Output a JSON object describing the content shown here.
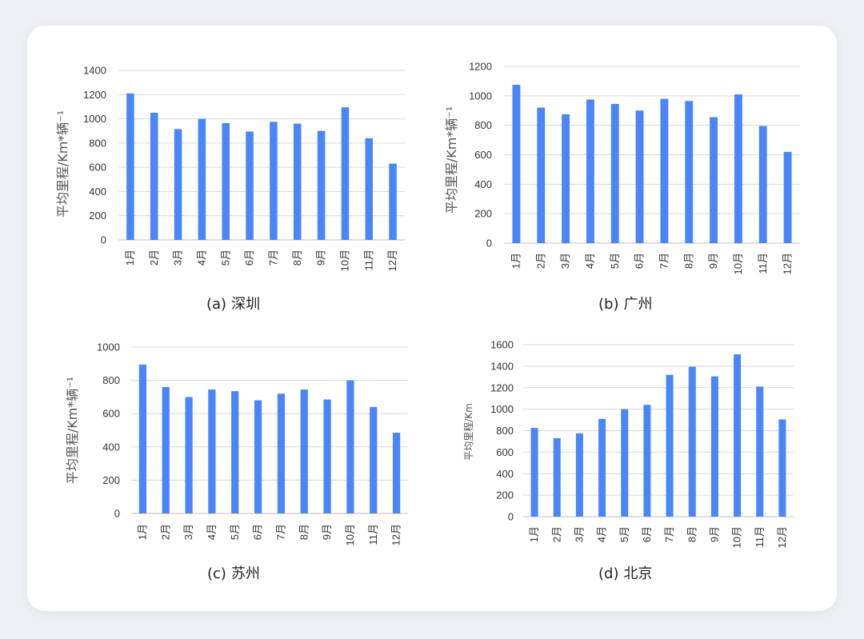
{
  "colors": {
    "bar": "#4a86f7",
    "grid": "#d9d9d9",
    "axis": "#bfbfbf"
  },
  "captions": [
    {
      "label": "(a)",
      "city": "深圳"
    },
    {
      "label": "(b)",
      "city": "广州"
    },
    {
      "label": "(c)",
      "city": "苏州"
    },
    {
      "label": "(d)",
      "city": "北京"
    }
  ],
  "chart_data": [
    {
      "type": "bar",
      "categories": [
        "1月",
        "2月",
        "3月",
        "4月",
        "5月",
        "6月",
        "7月",
        "8月",
        "9月",
        "10月",
        "11月",
        "12月"
      ],
      "values": [
        1210,
        1050,
        915,
        1000,
        965,
        895,
        975,
        960,
        900,
        1095,
        840,
        630
      ],
      "ylabel": "平均里程/Km*辆⁻¹",
      "ylim": [
        0,
        1400
      ],
      "yticks": [
        0,
        200,
        400,
        600,
        800,
        1000,
        1200,
        1400
      ],
      "grid": true
    },
    {
      "type": "bar",
      "categories": [
        "1月",
        "2月",
        "3月",
        "4月",
        "5月",
        "6月",
        "7月",
        "8月",
        "9月",
        "10月",
        "11月",
        "12月"
      ],
      "values": [
        1075,
        920,
        875,
        975,
        945,
        900,
        980,
        965,
        855,
        1010,
        795,
        620
      ],
      "ylabel": "平均里程/Km*辆⁻¹",
      "ylim": [
        0,
        1200
      ],
      "yticks": [
        0,
        200,
        400,
        600,
        800,
        1000,
        1200
      ],
      "grid": true
    },
    {
      "type": "bar",
      "categories": [
        "1月",
        "2月",
        "3月",
        "4月",
        "5月",
        "6月",
        "7月",
        "8月",
        "9月",
        "10月",
        "11月",
        "12月"
      ],
      "values": [
        895,
        760,
        700,
        745,
        735,
        680,
        720,
        745,
        685,
        800,
        640,
        485
      ],
      "ylabel": "平均里程/Km*辆⁻¹",
      "ylim": [
        0,
        1000
      ],
      "yticks": [
        0,
        200,
        400,
        600,
        800,
        1000
      ],
      "grid": true
    },
    {
      "type": "bar",
      "categories": [
        "1月",
        "2月",
        "3月",
        "4月",
        "5月",
        "6月",
        "7月",
        "8月",
        "9月",
        "10月",
        "11月",
        "12月"
      ],
      "values": [
        825,
        730,
        775,
        910,
        1000,
        1040,
        1320,
        1395,
        1305,
        1510,
        1210,
        905
      ],
      "ylabel": "平均里程/Km",
      "ylim": [
        0,
        1600
      ],
      "yticks": [
        0,
        200,
        400,
        600,
        800,
        1000,
        1200,
        1400,
        1600
      ],
      "grid": true
    }
  ]
}
